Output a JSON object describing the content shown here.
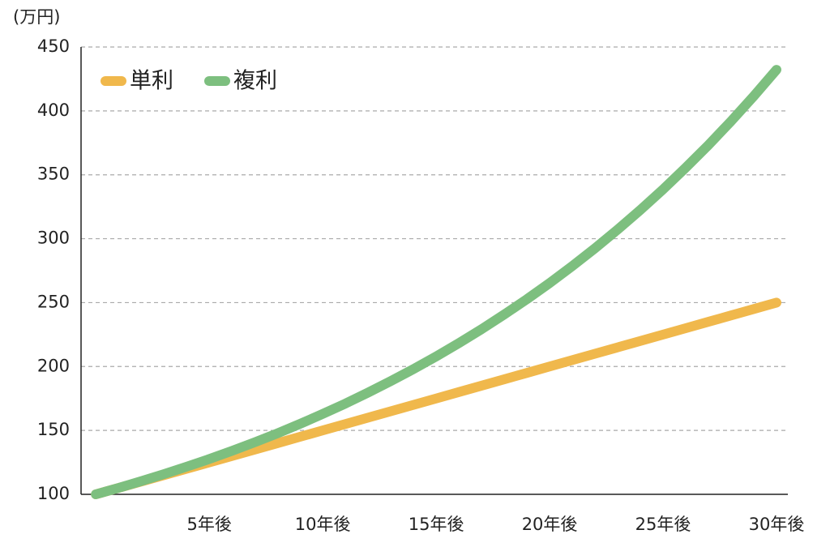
{
  "chart_data": {
    "type": "line",
    "y_label": "(万円)",
    "x": [
      0,
      1,
      2,
      3,
      4,
      5,
      6,
      7,
      8,
      9,
      10,
      11,
      12,
      13,
      14,
      15,
      16,
      17,
      18,
      19,
      20,
      21,
      22,
      23,
      24,
      25,
      26,
      27,
      28,
      29,
      30
    ],
    "series": [
      {
        "name": "単利",
        "color": "#f0b84c",
        "values": [
          100,
          105,
          110,
          115,
          120,
          125,
          130,
          135,
          140,
          145,
          150,
          155,
          160,
          165,
          170,
          175,
          180,
          185,
          190,
          195,
          200,
          205,
          210,
          215,
          220,
          225,
          230,
          235,
          240,
          245,
          250
        ]
      },
      {
        "name": "複利",
        "color": "#7dbf7f",
        "values": [
          100,
          105,
          110.3,
          115.8,
          121.6,
          127.6,
          134,
          140.7,
          147.7,
          155.1,
          162.9,
          171,
          179.6,
          188.6,
          198,
          207.9,
          218.3,
          229.2,
          240.7,
          252.7,
          265.3,
          278.6,
          292.5,
          307.2,
          322.5,
          338.6,
          355.6,
          373.3,
          392,
          411.6,
          432.2
        ]
      }
    ],
    "xlim": [
      -0.65,
      30.5
    ],
    "xticks": [
      {
        "value": 5,
        "label": "5年後"
      },
      {
        "value": 10,
        "label": "10年後"
      },
      {
        "value": 15,
        "label": "15年後"
      },
      {
        "value": 20,
        "label": "20年後"
      },
      {
        "value": 25,
        "label": "25年後"
      },
      {
        "value": 30,
        "label": "30年後"
      }
    ],
    "ylim": [
      100,
      450
    ],
    "yticks": [
      100,
      150,
      200,
      250,
      300,
      350,
      400,
      450
    ],
    "grid": true,
    "legend": "upper-left"
  }
}
